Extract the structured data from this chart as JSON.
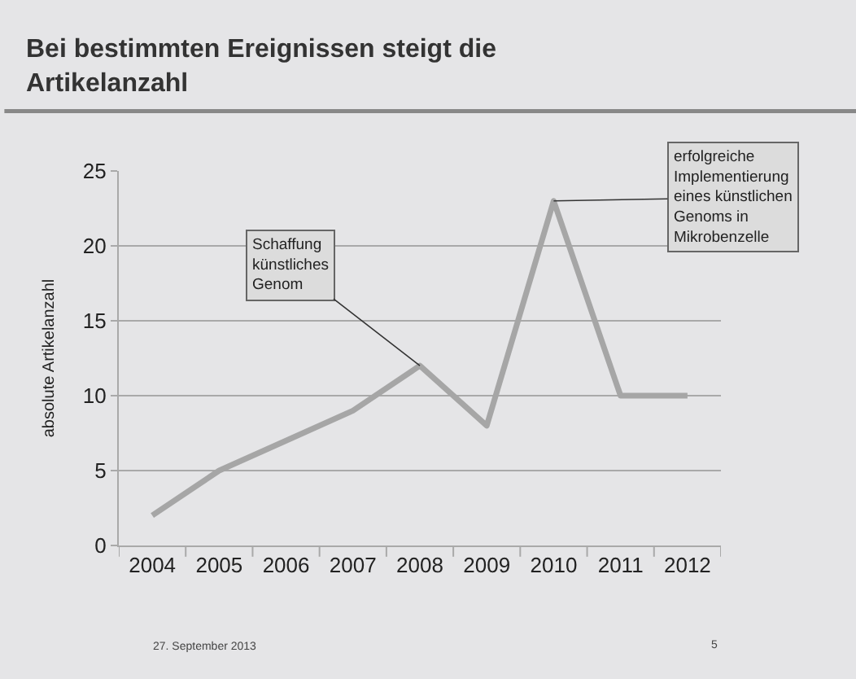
{
  "chart_data": {
    "type": "line",
    "title": "Bei bestimmten Ereignissen steigt die Artikelanzahl",
    "ylabel": "absolute Artikelanzahl",
    "categories": [
      "2004",
      "2005",
      "2006",
      "2007",
      "2008",
      "2009",
      "2010",
      "2011",
      "2012"
    ],
    "series": [
      {
        "color": "#a6a6a6",
        "values": [
          2,
          5,
          7,
          9,
          12,
          8,
          23,
          10,
          10
        ]
      }
    ],
    "ylim": [
      0,
      25
    ],
    "yticks": [
      0,
      5,
      10,
      15,
      20,
      25
    ],
    "grid": "y",
    "marker": "none",
    "line_style": "solid",
    "annotations": [
      {
        "text": "Schaffung\nkünstliches\nGenom",
        "x": "2008",
        "y": 12
      },
      {
        "text": "erfolgreiche\nImplementierung\neines künstlichen\nGenoms in\nMikrobenzelle",
        "x": "2010",
        "y": 23
      },
      "27. September 2013",
      "5"
    ]
  }
}
